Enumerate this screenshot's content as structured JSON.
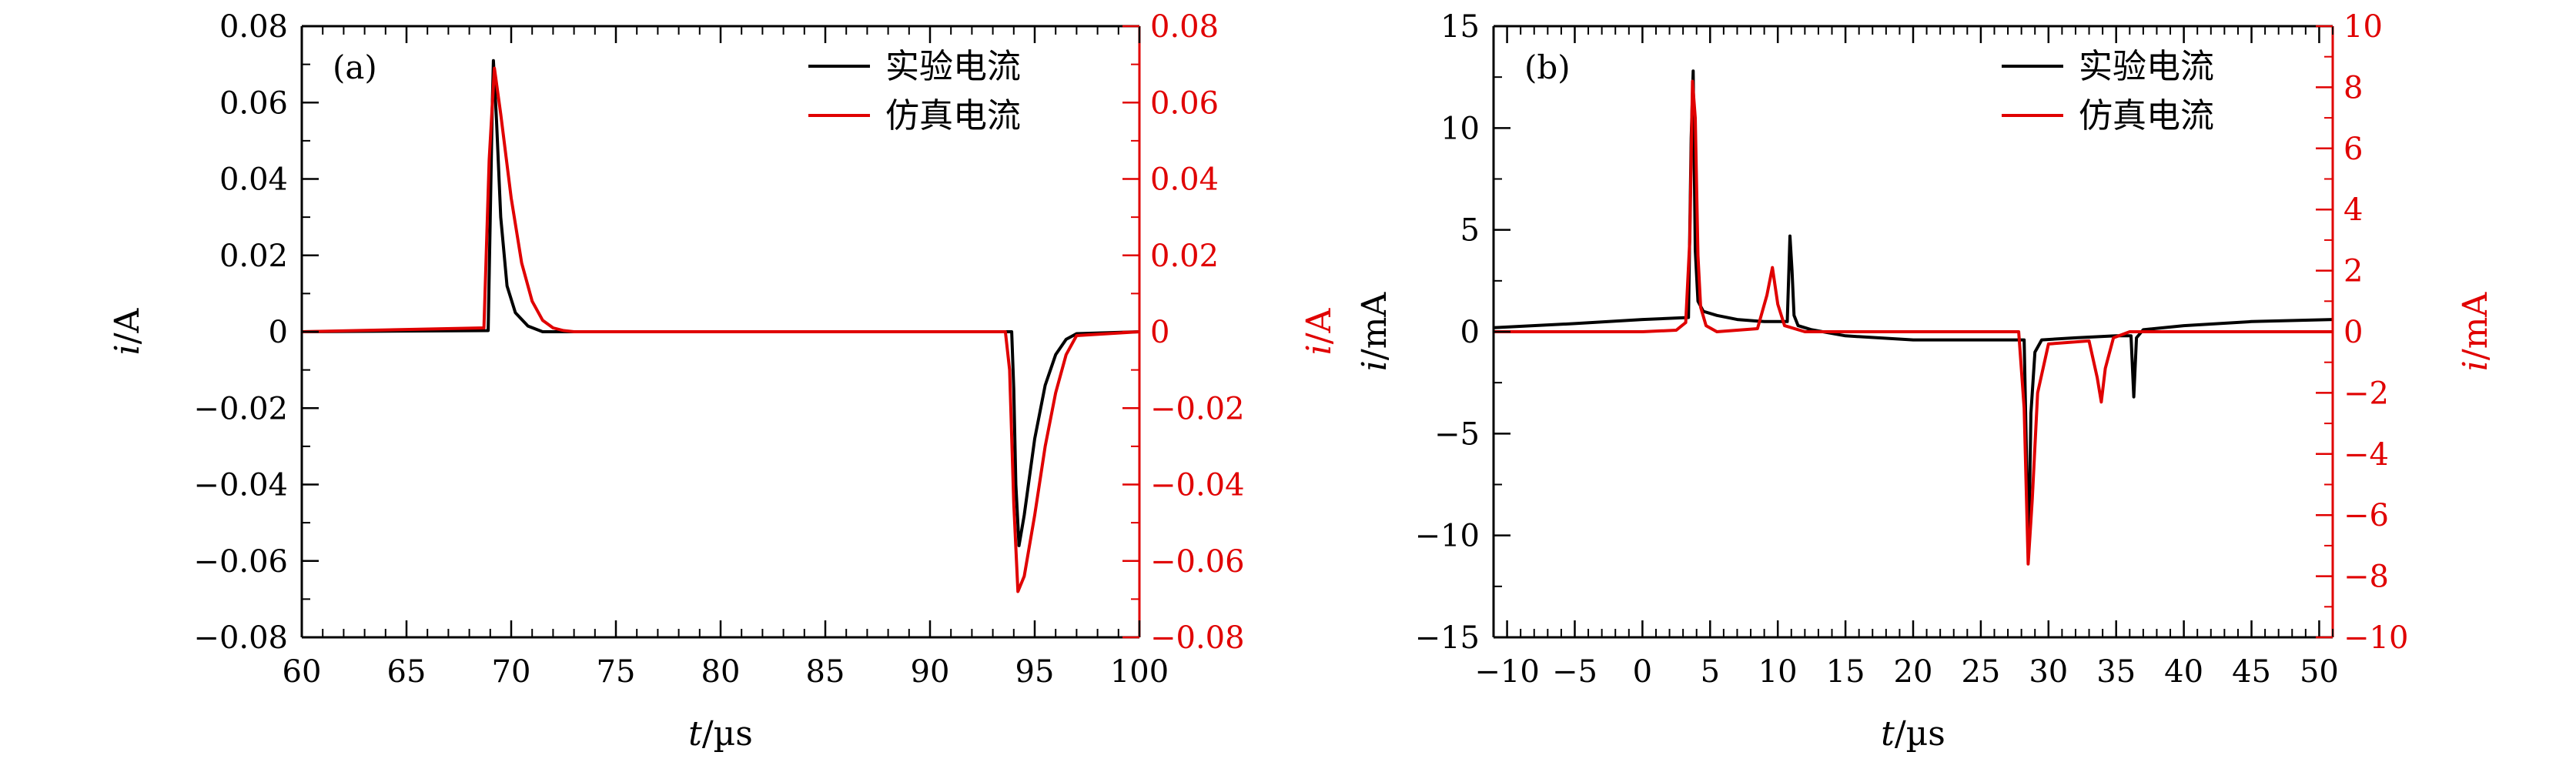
{
  "chart_data": [
    {
      "type": "line",
      "panel_label": "(a)",
      "xlabel_var": "t",
      "xlabel_unit": "/µs",
      "ylabel_left_var": "i",
      "ylabel_left_unit": "/A",
      "ylabel_right_var": "i",
      "ylabel_right_unit": "/A",
      "xlim": [
        60,
        100
      ],
      "ylim_left": [
        -0.08,
        0.08
      ],
      "ylim_right": [
        -0.08,
        0.08
      ],
      "xticks": [
        60,
        65,
        70,
        75,
        80,
        85,
        90,
        95,
        100
      ],
      "xtick_labels": [
        "60",
        "65",
        "70",
        "75",
        "80",
        "85",
        "90",
        "95",
        "100"
      ],
      "yticks_left": [
        -0.08,
        -0.06,
        -0.04,
        -0.02,
        0,
        0.02,
        0.04,
        0.06,
        0.08
      ],
      "ytick_labels_left": [
        "−0.08",
        "−0.06",
        "−0.04",
        "−0.02",
        "0",
        "0.02",
        "0.04",
        "0.06",
        "0.08"
      ],
      "yticks_right": [
        -0.08,
        -0.06,
        -0.04,
        -0.02,
        0,
        0.02,
        0.04,
        0.06,
        0.08
      ],
      "ytick_labels_right": [
        "−0.08",
        "−0.06",
        "−0.04",
        "−0.02",
        "0",
        "0.02",
        "0.04",
        "0.06",
        "0.08"
      ],
      "legend_position": "top-right",
      "series": [
        {
          "name": "实验电流",
          "color": "#000000",
          "axis": "left",
          "x": [
            60,
            68.9,
            69.0,
            69.1,
            69.15,
            69.3,
            69.5,
            69.8,
            70.2,
            70.8,
            71.5,
            93.9,
            94.0,
            94.1,
            94.25,
            94.5,
            95.0,
            95.5,
            96.0,
            96.5,
            97.0,
            100
          ],
          "y": [
            0,
            0.0003,
            0.03,
            0.06,
            0.071,
            0.055,
            0.03,
            0.012,
            0.005,
            0.0015,
            0,
            0,
            -0.015,
            -0.04,
            -0.056,
            -0.048,
            -0.028,
            -0.014,
            -0.006,
            -0.002,
            -0.0005,
            0
          ]
        },
        {
          "name": "仿真电流",
          "color": "#e00000",
          "axis": "right",
          "x": [
            60,
            68.7,
            68.95,
            69.2,
            69.5,
            70.0,
            70.5,
            71.0,
            71.5,
            72.0,
            72.5,
            73.0,
            93.6,
            93.8,
            94.0,
            94.2,
            94.5,
            95.0,
            95.5,
            96.0,
            96.5,
            97.0,
            100
          ],
          "y": [
            0,
            0.001,
            0.045,
            0.069,
            0.057,
            0.035,
            0.018,
            0.008,
            0.003,
            0.001,
            0.0003,
            0,
            0,
            -0.01,
            -0.045,
            -0.068,
            -0.064,
            -0.048,
            -0.03,
            -0.016,
            -0.006,
            -0.001,
            0
          ]
        }
      ]
    },
    {
      "type": "line",
      "panel_label": "(b)",
      "xlabel_var": "t",
      "xlabel_unit": "/µs",
      "ylabel_left_var": "i",
      "ylabel_left_unit": "/mA",
      "ylabel_right_var": "i",
      "ylabel_right_unit": "/mA",
      "xlim": [
        -11,
        51
      ],
      "ylim_left": [
        -15,
        15
      ],
      "ylim_right": [
        -10,
        10
      ],
      "xticks": [
        -10,
        -5,
        0,
        5,
        10,
        15,
        20,
        25,
        30,
        35,
        40,
        45,
        50
      ],
      "xtick_labels": [
        "−10",
        "−5",
        "0",
        "5",
        "10",
        "15",
        "20",
        "25",
        "30",
        "35",
        "40",
        "45",
        "50"
      ],
      "yticks_left": [
        -15,
        -10,
        -5,
        0,
        5,
        10,
        15
      ],
      "ytick_labels_left": [
        "−15",
        "−10",
        "−5",
        "0",
        "5",
        "10",
        "15"
      ],
      "yticks_right": [
        -10,
        -8,
        -6,
        -4,
        -2,
        0,
        2,
        4,
        6,
        8,
        10
      ],
      "ytick_labels_right": [
        "−10",
        "−8",
        "−6",
        "−4",
        "−2",
        "0",
        "2",
        "4",
        "6",
        "8",
        "10"
      ],
      "legend_position": "top-right",
      "series": [
        {
          "name": "实验电流",
          "color": "#000000",
          "axis": "left",
          "x": [
            -11,
            -5,
            0,
            3.4,
            3.6,
            3.75,
            3.9,
            4.1,
            4.5,
            5.5,
            7,
            9,
            10.7,
            10.9,
            11.05,
            11.2,
            11.5,
            12.5,
            15,
            20,
            25,
            28.2,
            28.4,
            28.55,
            28.7,
            29.0,
            29.5,
            32,
            35,
            36.1,
            36.3,
            36.5,
            37,
            40,
            45,
            51
          ],
          "y": [
            0.2,
            0.4,
            0.6,
            0.7,
            9.5,
            12.8,
            4,
            1.5,
            1.0,
            0.8,
            0.6,
            0.5,
            0.5,
            4.7,
            3,
            0.8,
            0.3,
            0.1,
            -0.2,
            -0.4,
            -0.4,
            -0.4,
            -7,
            -10.2,
            -4,
            -1.0,
            -0.4,
            -0.3,
            -0.2,
            -0.2,
            -3.2,
            -0.3,
            0.1,
            0.3,
            0.5,
            0.6
          ]
        },
        {
          "name": "仿真电流",
          "color": "#e00000",
          "axis": "right",
          "x": [
            -11,
            0,
            2.5,
            3.2,
            3.5,
            3.7,
            3.9,
            4.1,
            4.3,
            4.7,
            5.5,
            8.5,
            9.2,
            9.6,
            10.0,
            10.5,
            12,
            20,
            27.8,
            28.2,
            28.5,
            28.8,
            29.2,
            30,
            33.0,
            33.6,
            33.9,
            34.2,
            34.8,
            36,
            51
          ],
          "y": [
            0,
            0,
            0.05,
            0.3,
            3,
            8.2,
            7,
            2.5,
            0.8,
            0.2,
            0,
            0.1,
            1.2,
            2.1,
            0.9,
            0.2,
            0,
            0,
            0,
            -2.5,
            -7.6,
            -5.5,
            -2,
            -0.4,
            -0.3,
            -1.5,
            -2.3,
            -1.2,
            -0.2,
            0,
            0
          ]
        }
      ]
    }
  ]
}
